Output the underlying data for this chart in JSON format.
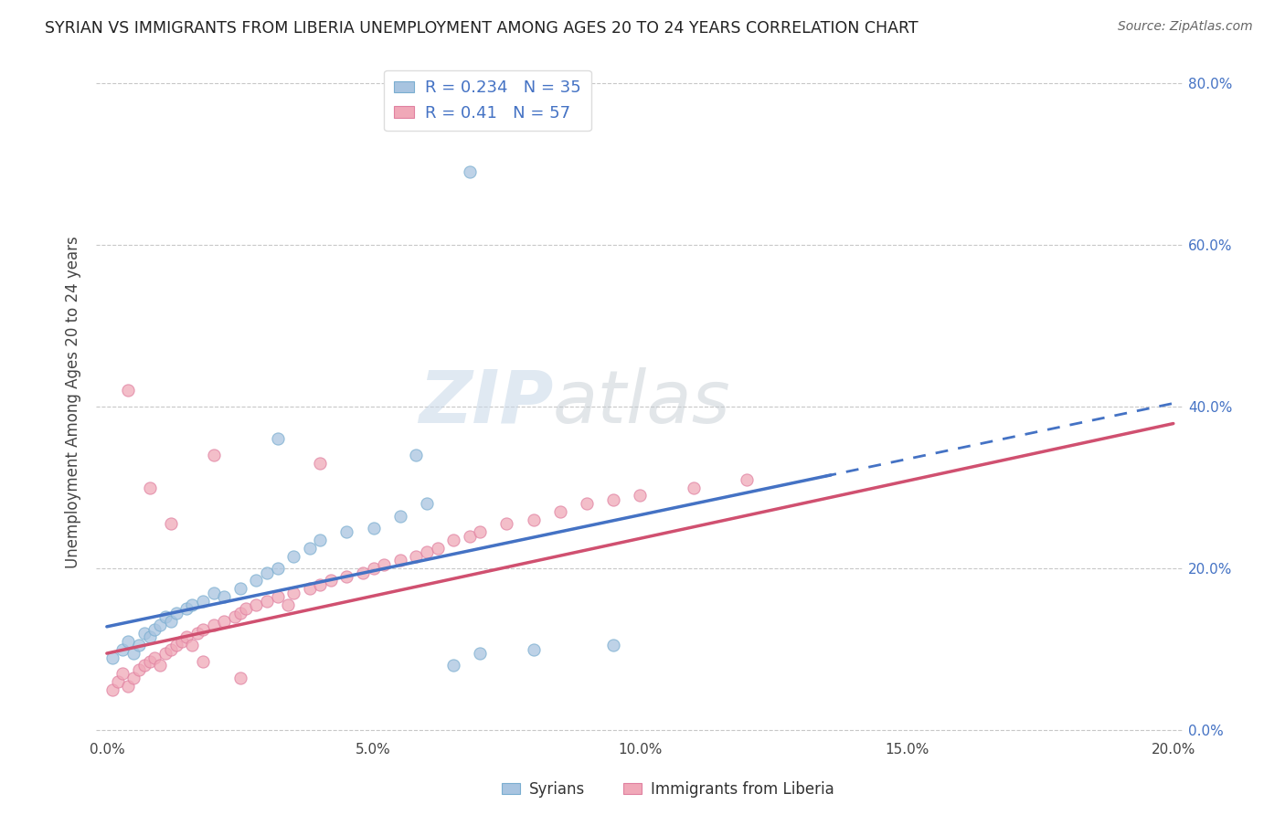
{
  "title": "SYRIAN VS IMMIGRANTS FROM LIBERIA UNEMPLOYMENT AMONG AGES 20 TO 24 YEARS CORRELATION CHART",
  "source": "Source: ZipAtlas.com",
  "ylabel": "Unemployment Among Ages 20 to 24 years",
  "xlabel": "",
  "xlim": [
    -0.002,
    0.202
  ],
  "ylim": [
    -0.01,
    0.82
  ],
  "xticks": [
    0.0,
    0.05,
    0.1,
    0.15,
    0.2
  ],
  "yticks": [
    0.0,
    0.2,
    0.4,
    0.6,
    0.8
  ],
  "xtick_labels": [
    "0.0%",
    "5.0%",
    "10.0%",
    "15.0%",
    "20.0%"
  ],
  "ytick_labels_right": [
    "0.0%",
    "20.0%",
    "40.0%",
    "60.0%",
    "80.0%"
  ],
  "syrian_R": 0.234,
  "syrian_N": 35,
  "liberia_R": 0.41,
  "liberia_N": 57,
  "syrian_color": "#a8c4e0",
  "syrian_edge_color": "#7aaed0",
  "liberia_color": "#f0a8b8",
  "liberia_edge_color": "#e080a0",
  "syrian_line_color": "#4472c4",
  "liberia_line_color": "#d05070",
  "background_color": "#ffffff",
  "grid_color": "#c8c8c8",
  "watermark_zip": "ZIP",
  "watermark_atlas": "atlas",
  "legend_label_syrian": "Syrians",
  "legend_label_liberia": "Immigrants from Liberia",
  "syrian_line_intercept": 0.128,
  "syrian_line_slope": 1.38,
  "liberia_line_intercept": 0.095,
  "liberia_line_slope": 1.42,
  "syrian_x": [
    0.001,
    0.003,
    0.004,
    0.005,
    0.006,
    0.007,
    0.008,
    0.009,
    0.01,
    0.011,
    0.012,
    0.013,
    0.015,
    0.016,
    0.018,
    0.02,
    0.022,
    0.025,
    0.028,
    0.03,
    0.032,
    0.035,
    0.038,
    0.04,
    0.045,
    0.05,
    0.055,
    0.06,
    0.065,
    0.07,
    0.032,
    0.058,
    0.068,
    0.08,
    0.095
  ],
  "syrian_y": [
    0.09,
    0.1,
    0.11,
    0.095,
    0.105,
    0.12,
    0.115,
    0.125,
    0.13,
    0.14,
    0.135,
    0.145,
    0.15,
    0.155,
    0.16,
    0.17,
    0.165,
    0.175,
    0.185,
    0.195,
    0.2,
    0.215,
    0.225,
    0.235,
    0.245,
    0.25,
    0.265,
    0.28,
    0.08,
    0.095,
    0.36,
    0.34,
    0.69,
    0.1,
    0.105
  ],
  "liberia_x": [
    0.001,
    0.002,
    0.003,
    0.004,
    0.005,
    0.006,
    0.007,
    0.008,
    0.009,
    0.01,
    0.011,
    0.012,
    0.013,
    0.014,
    0.015,
    0.016,
    0.017,
    0.018,
    0.02,
    0.022,
    0.024,
    0.025,
    0.026,
    0.028,
    0.03,
    0.032,
    0.034,
    0.035,
    0.038,
    0.04,
    0.042,
    0.045,
    0.048,
    0.05,
    0.052,
    0.055,
    0.058,
    0.06,
    0.062,
    0.065,
    0.068,
    0.07,
    0.075,
    0.08,
    0.085,
    0.09,
    0.095,
    0.1,
    0.11,
    0.12,
    0.004,
    0.008,
    0.012,
    0.018,
    0.025,
    0.02,
    0.04
  ],
  "liberia_y": [
    0.05,
    0.06,
    0.07,
    0.055,
    0.065,
    0.075,
    0.08,
    0.085,
    0.09,
    0.08,
    0.095,
    0.1,
    0.105,
    0.11,
    0.115,
    0.105,
    0.12,
    0.125,
    0.13,
    0.135,
    0.14,
    0.145,
    0.15,
    0.155,
    0.16,
    0.165,
    0.155,
    0.17,
    0.175,
    0.18,
    0.185,
    0.19,
    0.195,
    0.2,
    0.205,
    0.21,
    0.215,
    0.22,
    0.225,
    0.235,
    0.24,
    0.245,
    0.255,
    0.26,
    0.27,
    0.28,
    0.285,
    0.29,
    0.3,
    0.31,
    0.42,
    0.3,
    0.255,
    0.085,
    0.065,
    0.34,
    0.33
  ]
}
